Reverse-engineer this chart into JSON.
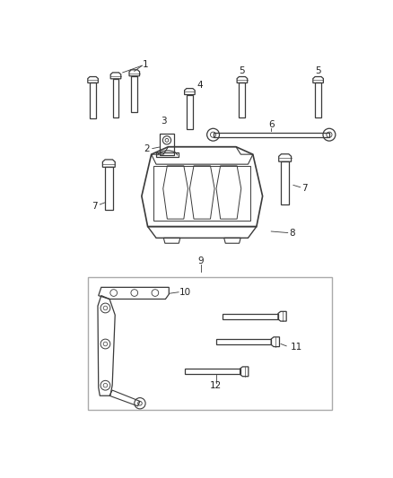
{
  "background_color": "#ffffff",
  "figsize": [
    4.38,
    5.33
  ],
  "dpi": 100,
  "line_color": "#3a3a3a",
  "label_color": "#222222",
  "label_fontsize": 7.5,
  "bolt_color": "#3a3a3a"
}
